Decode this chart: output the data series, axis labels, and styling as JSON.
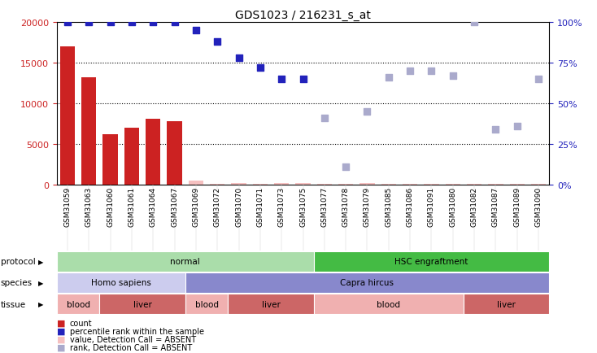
{
  "title": "GDS1023 / 216231_s_at",
  "samples": [
    "GSM31059",
    "GSM31063",
    "GSM31060",
    "GSM31061",
    "GSM31064",
    "GSM31067",
    "GSM31069",
    "GSM31072",
    "GSM31070",
    "GSM31071",
    "GSM31073",
    "GSM31075",
    "GSM31077",
    "GSM31078",
    "GSM31079",
    "GSM31085",
    "GSM31086",
    "GSM31091",
    "GSM31080",
    "GSM31082",
    "GSM31087",
    "GSM31089",
    "GSM31090"
  ],
  "count_values": [
    17000,
    13200,
    6200,
    7000,
    8100,
    7800,
    500,
    150,
    200,
    100,
    200,
    200,
    100,
    150,
    200,
    100,
    150,
    100,
    150,
    100,
    100,
    100,
    150
  ],
  "count_absent": [
    false,
    false,
    false,
    false,
    false,
    false,
    true,
    true,
    true,
    true,
    true,
    true,
    true,
    true,
    true,
    true,
    true,
    true,
    true,
    true,
    true,
    true,
    true
  ],
  "rank_pct": [
    100,
    100,
    100,
    100,
    100,
    100,
    95,
    88,
    78,
    72,
    65,
    65,
    41,
    11,
    45,
    66,
    70,
    70,
    67,
    100,
    34,
    36,
    65
  ],
  "rank_absent": [
    false,
    false,
    false,
    false,
    false,
    false,
    false,
    false,
    false,
    false,
    false,
    false,
    true,
    true,
    true,
    true,
    true,
    true,
    true,
    true,
    true,
    true,
    true
  ],
  "ylim_left": [
    0,
    20000
  ],
  "ylim_right": [
    0,
    100
  ],
  "yticks_left": [
    0,
    5000,
    10000,
    15000,
    20000
  ],
  "yticks_right": [
    0,
    25,
    50,
    75,
    100
  ],
  "protocol_bands": [
    {
      "label": "normal",
      "start": 0,
      "end": 12,
      "color": "#aaddaa"
    },
    {
      "label": "HSC engraftment",
      "start": 12,
      "end": 23,
      "color": "#44bb44"
    }
  ],
  "species_bands": [
    {
      "label": "Homo sapiens",
      "start": 0,
      "end": 6,
      "color": "#ccccee"
    },
    {
      "label": "Capra hircus",
      "start": 6,
      "end": 23,
      "color": "#8888cc"
    }
  ],
  "tissue_bands": [
    {
      "label": "blood",
      "start": 0,
      "end": 2,
      "color": "#f0b0b0"
    },
    {
      "label": "liver",
      "start": 2,
      "end": 6,
      "color": "#cc6666"
    },
    {
      "label": "blood",
      "start": 6,
      "end": 8,
      "color": "#f0b0b0"
    },
    {
      "label": "liver",
      "start": 8,
      "end": 12,
      "color": "#cc6666"
    },
    {
      "label": "blood",
      "start": 12,
      "end": 19,
      "color": "#f0b0b0"
    },
    {
      "label": "liver",
      "start": 19,
      "end": 23,
      "color": "#cc6666"
    }
  ],
  "bar_color": "#cc2222",
  "bar_absent_color": "#f5c0c0",
  "rank_present_color": "#2222bb",
  "rank_absent_color": "#aaaacc",
  "left_tick_color": "#cc2222",
  "right_tick_color": "#2222bb",
  "hline_vals": [
    5000,
    10000,
    15000
  ],
  "legend_items": [
    {
      "color": "#cc2222",
      "label": "count"
    },
    {
      "color": "#2222bb",
      "label": "percentile rank within the sample"
    },
    {
      "color": "#f5c0c0",
      "label": "value, Detection Call = ABSENT"
    },
    {
      "color": "#aaaacc",
      "label": "rank, Detection Call = ABSENT"
    }
  ]
}
